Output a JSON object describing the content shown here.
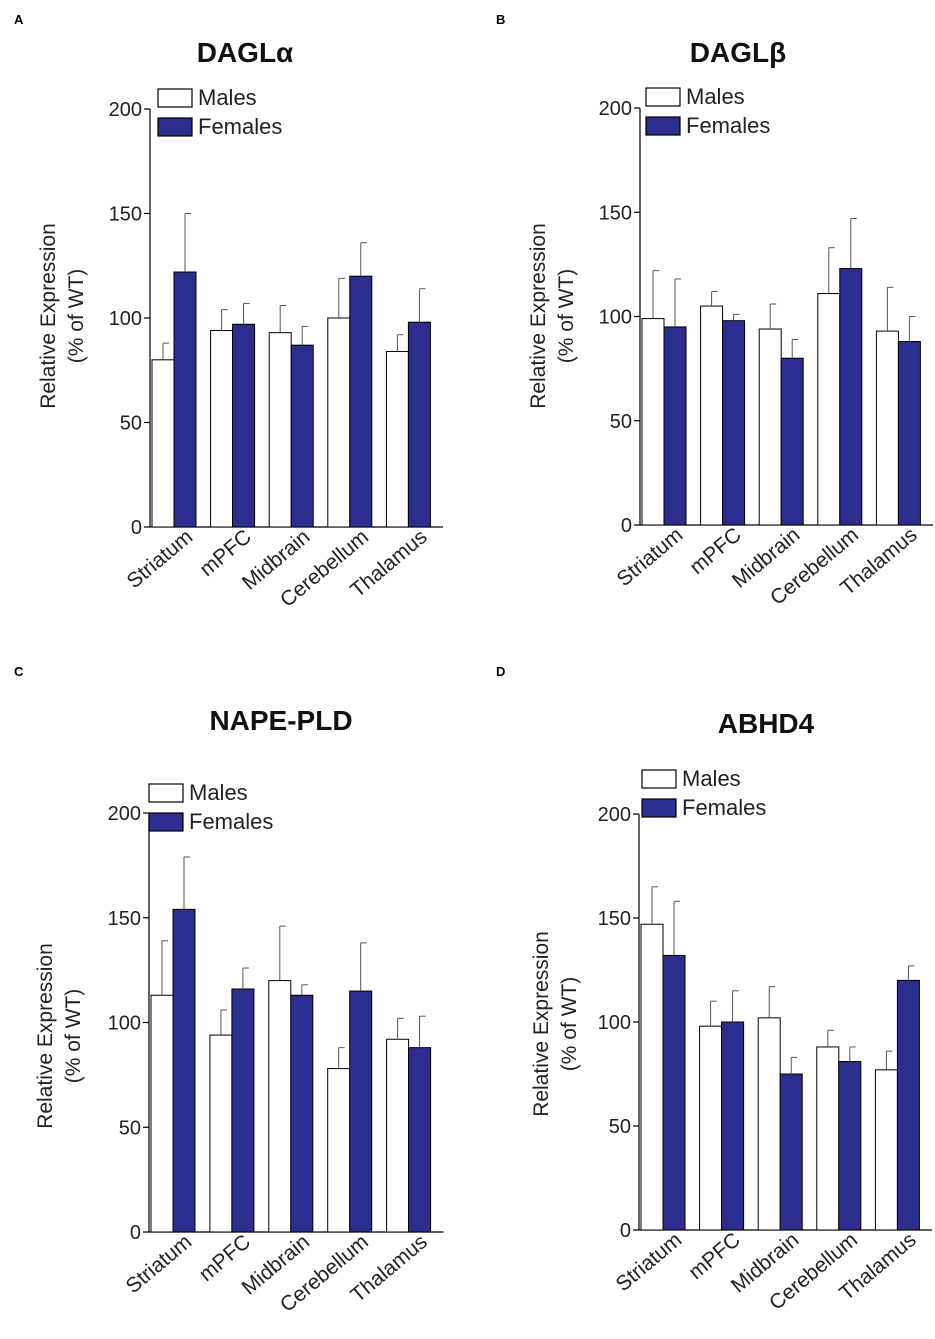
{
  "colors": {
    "males": "#ffffff",
    "females": "#2b2e8f",
    "stroke": "#000000"
  },
  "chart_data": [
    {
      "type": "bar",
      "panel": "A",
      "title": "DAGLα",
      "ylabel_line1": "Relative Expression",
      "ylabel_line2": "(% of WT)",
      "ylim": [
        0,
        200
      ],
      "yticks": [
        "0",
        "50",
        "100",
        "150",
        "200"
      ],
      "categories": [
        "Striatum",
        "mPFC",
        "Midbrain",
        "Cerebellum",
        "Thalamus"
      ],
      "series": [
        {
          "name": "Males",
          "values": [
            80,
            94,
            93,
            100,
            84
          ],
          "errors": [
            8,
            10,
            13,
            19,
            8
          ]
        },
        {
          "name": "Females",
          "values": [
            122,
            97,
            87,
            120,
            98
          ],
          "errors": [
            28,
            10,
            9,
            16,
            16
          ]
        }
      ]
    },
    {
      "type": "bar",
      "panel": "B",
      "title": "DAGLβ",
      "ylabel_line1": "Relative Expression",
      "ylabel_line2": "(% of WT)",
      "ylim": [
        0,
        200
      ],
      "yticks": [
        "0",
        "50",
        "100",
        "150",
        "200"
      ],
      "categories": [
        "Striatum",
        "mPFC",
        "Midbrain",
        "Cerebellum",
        "Thalamus"
      ],
      "series": [
        {
          "name": "Males",
          "values": [
            99,
            105,
            94,
            111,
            93
          ],
          "errors": [
            23,
            7,
            12,
            22,
            21
          ]
        },
        {
          "name": "Females",
          "values": [
            95,
            98,
            80,
            123,
            88
          ],
          "errors": [
            23,
            3,
            9,
            24,
            12
          ]
        }
      ]
    },
    {
      "type": "bar",
      "panel": "C",
      "title": "NAPE-PLD",
      "ylabel_line1": "Relative Expression",
      "ylabel_line2": "(% of WT)",
      "ylim": [
        0,
        200
      ],
      "yticks": [
        "0",
        "50",
        "100",
        "150",
        "200"
      ],
      "categories": [
        "Striatum",
        "mPFC",
        "Midbrain",
        "Cerebellum",
        "Thalamus"
      ],
      "series": [
        {
          "name": "Males",
          "values": [
            113,
            94,
            120,
            78,
            92
          ],
          "errors": [
            26,
            12,
            26,
            10,
            10
          ]
        },
        {
          "name": "Females",
          "values": [
            154,
            116,
            113,
            115,
            88
          ],
          "errors": [
            25,
            10,
            5,
            23,
            15
          ]
        }
      ]
    },
    {
      "type": "bar",
      "panel": "D",
      "title": "ABHD4",
      "ylabel_line1": "Relative Expression",
      "ylabel_line2": "(% of WT)",
      "ylim": [
        0,
        200
      ],
      "yticks": [
        "0",
        "50",
        "100",
        "150",
        "200"
      ],
      "categories": [
        "Striatum",
        "mPFC",
        "Midbrain",
        "Cerebellum",
        "Thalamus"
      ],
      "series": [
        {
          "name": "Males",
          "values": [
            147,
            98,
            102,
            88,
            77
          ],
          "errors": [
            18,
            12,
            15,
            8,
            9
          ]
        },
        {
          "name": "Females",
          "values": [
            132,
            100,
            75,
            81,
            120
          ],
          "errors": [
            26,
            15,
            8,
            7,
            7
          ]
        }
      ]
    }
  ]
}
